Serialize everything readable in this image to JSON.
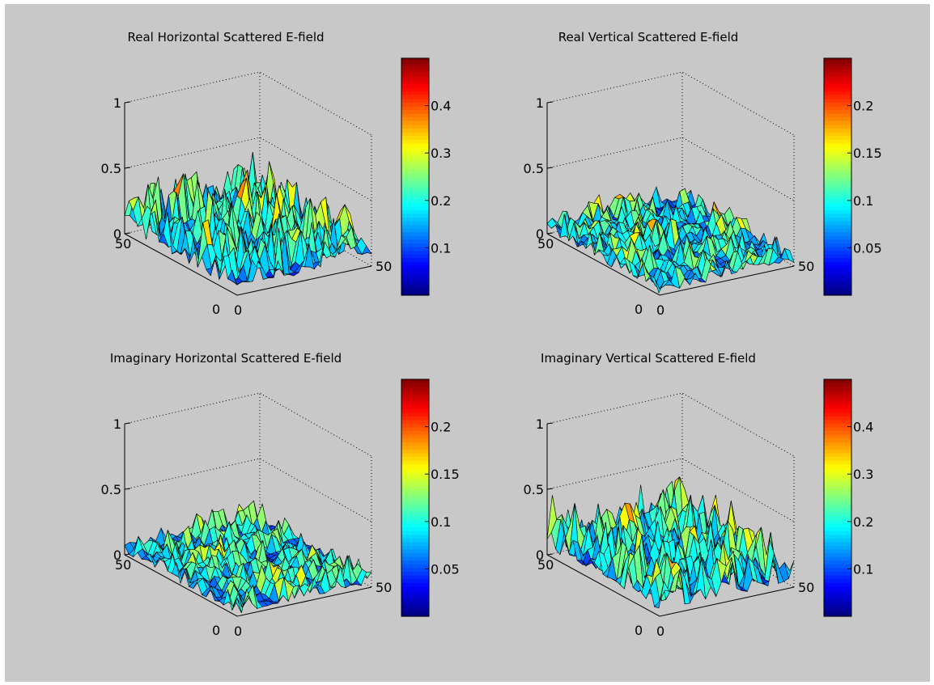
{
  "figure": {
    "background": "#c8c8c8"
  },
  "chart_data": [
    {
      "type": "surface",
      "title": "Real Horizontal Scattered E-field",
      "zticks": [
        "0",
        "0.5",
        "1"
      ],
      "yticks": [
        "0",
        "50"
      ],
      "xticks": [
        "0",
        "50"
      ],
      "zlim": [
        0,
        1
      ],
      "xlim": [
        0,
        50
      ],
      "ylim": [
        0,
        50
      ],
      "grid": true,
      "colormap": "jet",
      "color_range": [
        0,
        0.5
      ],
      "colorbar_ticks": [
        "0.1",
        "0.2",
        "0.3",
        "0.4"
      ],
      "colorbar_tick_values": [
        0.1,
        0.2,
        0.3,
        0.4
      ],
      "surface_peak": 0.5,
      "seed": 11
    },
    {
      "type": "surface",
      "title": "Real Vertical Scattered E-field",
      "zticks": [
        "0",
        "0.5",
        "1"
      ],
      "yticks": [
        "0",
        "50"
      ],
      "xticks": [
        "0",
        "50"
      ],
      "zlim": [
        0,
        1
      ],
      "xlim": [
        0,
        50
      ],
      "ylim": [
        0,
        50
      ],
      "grid": true,
      "colormap": "jet",
      "color_range": [
        0,
        0.25
      ],
      "colorbar_ticks": [
        "0.05",
        "0.1",
        "0.15",
        "0.2"
      ],
      "colorbar_tick_values": [
        0.05,
        0.1,
        0.15,
        0.2
      ],
      "surface_peak": 0.25,
      "seed": 23
    },
    {
      "type": "surface",
      "title": "Imaginary Horizontal Scattered E-field",
      "zticks": [
        "0",
        "0.5",
        "1"
      ],
      "yticks": [
        "0",
        "50"
      ],
      "xticks": [
        "0",
        "50"
      ],
      "zlim": [
        0,
        1
      ],
      "xlim": [
        0,
        50
      ],
      "ylim": [
        0,
        50
      ],
      "grid": true,
      "colormap": "jet",
      "color_range": [
        0,
        0.25
      ],
      "colorbar_ticks": [
        "0.05",
        "0.1",
        "0.15",
        "0.2"
      ],
      "colorbar_tick_values": [
        0.05,
        0.1,
        0.15,
        0.2
      ],
      "surface_peak": 0.25,
      "seed": 37
    },
    {
      "type": "surface",
      "title": "Imaginary Vertical Scattered E-field",
      "zticks": [
        "0",
        "0.5",
        "1"
      ],
      "yticks": [
        "0",
        "50"
      ],
      "xticks": [
        "0",
        "50"
      ],
      "zlim": [
        0,
        1
      ],
      "xlim": [
        0,
        50
      ],
      "ylim": [
        0,
        50
      ],
      "grid": true,
      "colormap": "jet",
      "color_range": [
        0,
        0.5
      ],
      "colorbar_ticks": [
        "0.1",
        "0.2",
        "0.3",
        "0.4"
      ],
      "colorbar_tick_values": [
        0.1,
        0.2,
        0.3,
        0.4
      ],
      "surface_peak": 0.5,
      "seed": 53
    }
  ]
}
